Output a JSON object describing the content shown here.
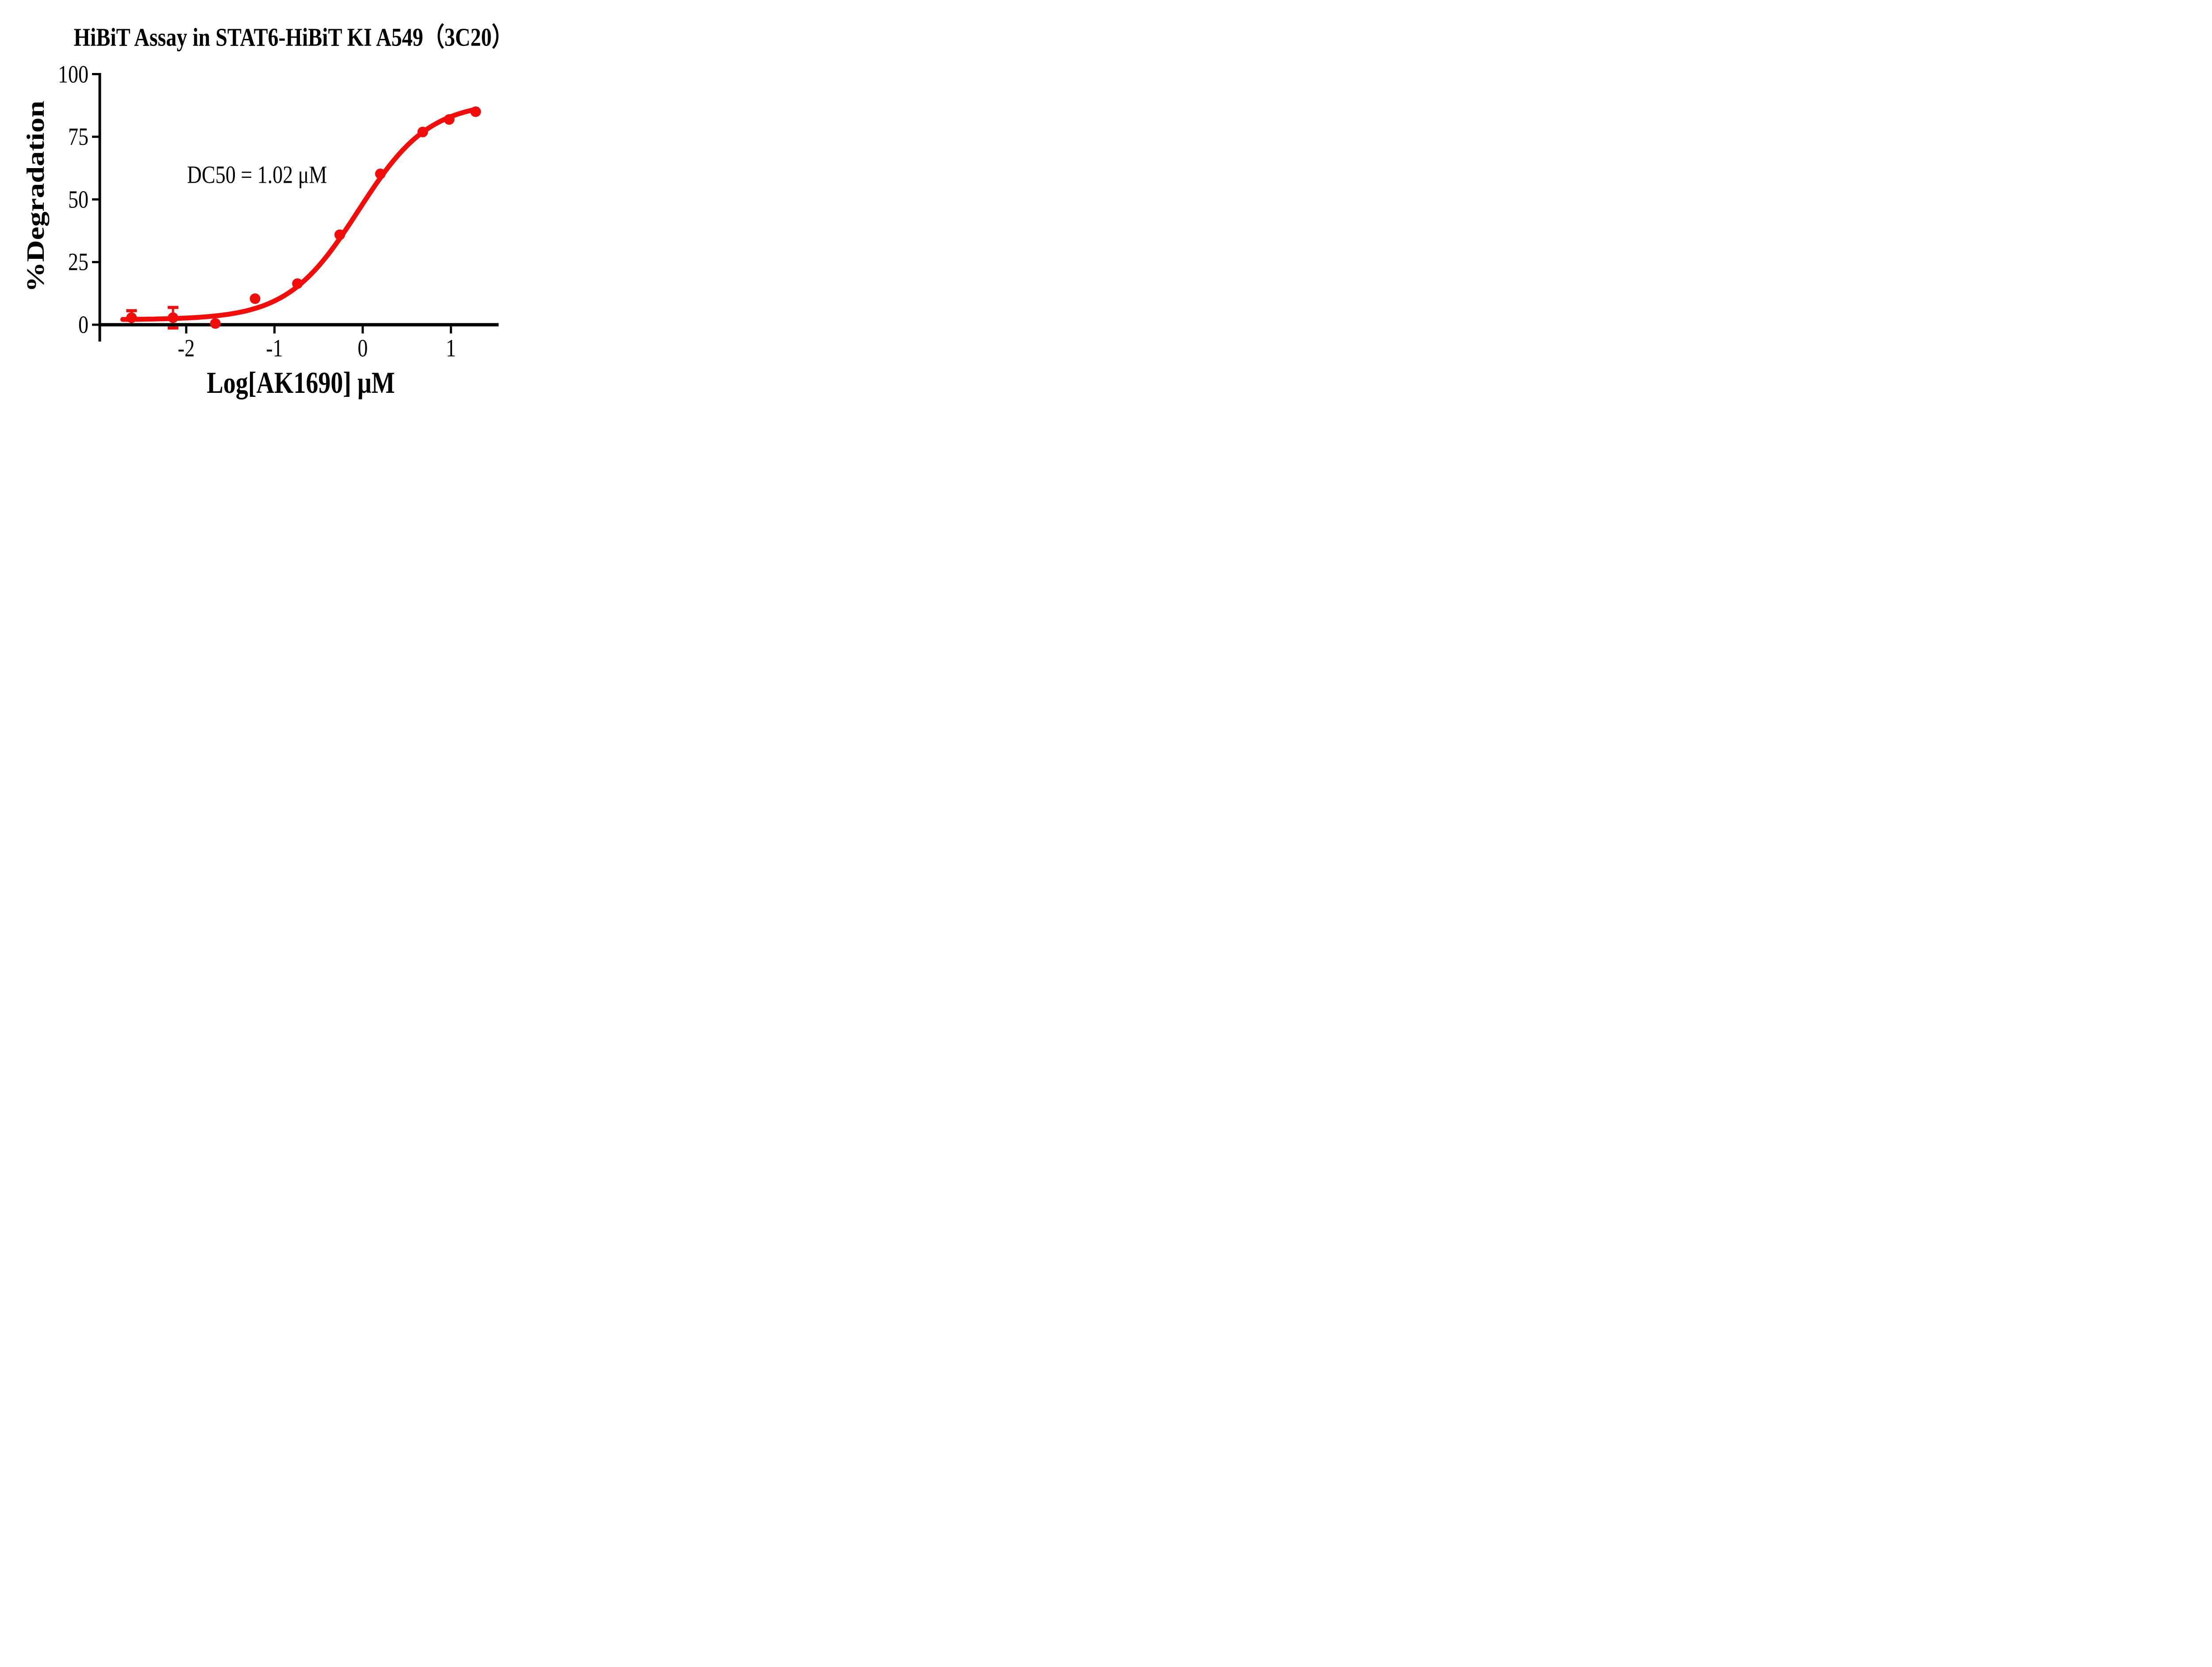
{
  "colors": {
    "curve": "#f20d0d",
    "axis": "#000000",
    "background": "#ffffff"
  },
  "chart_data": {
    "type": "scatter",
    "title": "HiBiT Assay in STAT6-HiBiT KI A549（3C20）",
    "xlabel": "Log[AK1690] μM",
    "ylabel": "%Degradation",
    "annotation": "DC50 = 1.02 μM",
    "dc50_uM": 1.02,
    "x_log10_uM": [
      -2.62,
      -2.15,
      -1.67,
      -1.22,
      -0.74,
      -0.26,
      0.2,
      0.68,
      0.98,
      1.28
    ],
    "y_pct_degradation": [
      2.8,
      2.8,
      0.5,
      10.4,
      16.4,
      35.9,
      60.2,
      76.9,
      81.9,
      85.0
    ],
    "y_err": [
      2.8,
      4.1,
      0,
      0,
      0,
      0,
      0,
      0,
      0,
      0
    ],
    "fit_4pl": {
      "bottom": 2.0,
      "top": 89.0,
      "hill": 1.08,
      "log_ec50": -0.05
    },
    "curve_x_range": [
      -2.72,
      1.28
    ],
    "xticks": [
      -2,
      -1,
      0,
      1
    ],
    "yticks": [
      0,
      25,
      50,
      75,
      100
    ],
    "xlim": [
      -2.98,
      1.54
    ],
    "ylim": [
      0,
      100
    ],
    "grid": false,
    "legend": null
  }
}
